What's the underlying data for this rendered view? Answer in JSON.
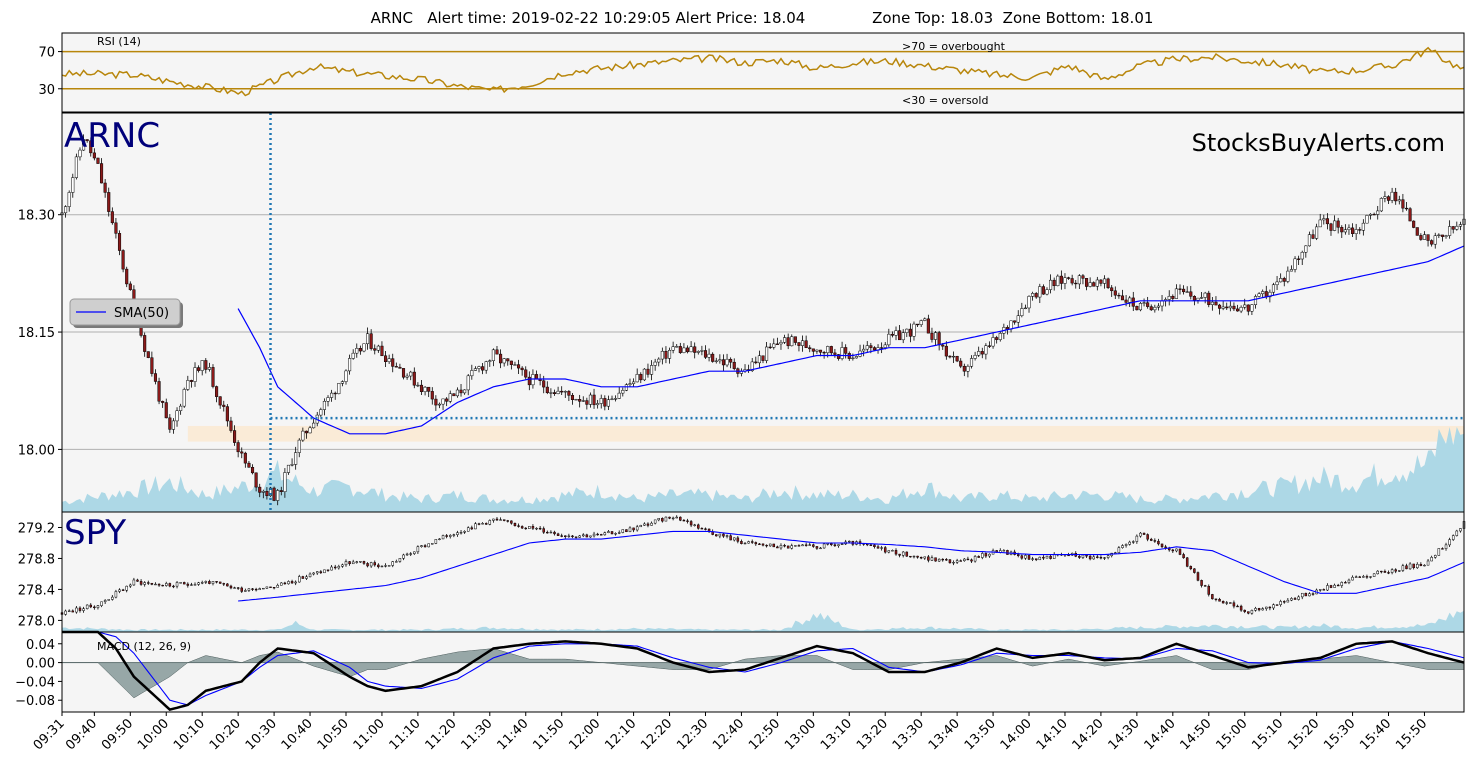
{
  "header": {
    "title": "ARNC   Alert time: 2019-02-22 10:29:05 Alert Price: 18.04              Zone Top: 18.03  Zone Bottom: 18.01"
  },
  "watermark": "StocksBuyAlerts.com",
  "colors": {
    "panel_bg": "#f5f5f5",
    "rsi_line": "#b8860b",
    "sma": "#0000ff",
    "volume": "#add8e6",
    "alert_line": "#1f77b4",
    "zone_fill": "#faebd7",
    "macd_hist": "#7f9394",
    "macd_line": "#000000",
    "signal_line": "#0000ff",
    "ticker_text": "#00007a"
  },
  "chart_data": [
    {
      "type": "line",
      "name": "rsi-panel",
      "label": "RSI (14)",
      "ylim": [
        5,
        90
      ],
      "yticks": [
        30,
        70
      ],
      "overbought": {
        "level": 70,
        "label": ">70 = overbought"
      },
      "oversold": {
        "level": 30,
        "label": "<30 = oversold"
      },
      "series": [
        {
          "name": "RSI (14)",
          "x": [
            0,
            10,
            20,
            30,
            40,
            50,
            60,
            70,
            80,
            90,
            100,
            110,
            120,
            130,
            140,
            150,
            160,
            170,
            180,
            190,
            200,
            210,
            220,
            230,
            240,
            250,
            260,
            270,
            280,
            290,
            300,
            310,
            320,
            330,
            340,
            350,
            360,
            370,
            380,
            390
          ],
          "y": [
            46,
            46,
            45,
            38,
            32,
            25,
            40,
            54,
            48,
            44,
            40,
            33,
            28,
            35,
            48,
            52,
            56,
            60,
            63,
            58,
            61,
            52,
            58,
            60,
            55,
            50,
            45,
            42,
            55,
            40,
            55,
            62,
            64,
            60,
            56,
            48,
            50,
            55,
            72,
            50
          ]
        }
      ]
    },
    {
      "type": "candlestick",
      "name": "arnc-price-panel",
      "ticker": "ARNC",
      "ylim": [
        17.92,
        18.43
      ],
      "yticks": [
        18.0,
        18.15,
        18.3
      ],
      "ytick_labels": [
        "18.00",
        "18.15",
        "18.30"
      ],
      "alert": {
        "time_index": 58,
        "price": 18.04
      },
      "zone": {
        "top": 18.03,
        "bottom": 18.01
      },
      "legend": {
        "label": "SMA(50)",
        "placement": "center-left"
      },
      "close_series": {
        "x": [
          0,
          6,
          10,
          15,
          20,
          25,
          30,
          35,
          40,
          45,
          50,
          55,
          60,
          65,
          70,
          75,
          80,
          85,
          90,
          95,
          100,
          105,
          110,
          115,
          120,
          130,
          140,
          150,
          160,
          170,
          180,
          190,
          200,
          210,
          220,
          230,
          240,
          250,
          260,
          270,
          280,
          290,
          300,
          310,
          320,
          330,
          340,
          350,
          360,
          370,
          380,
          390
        ],
        "y": [
          18.3,
          18.4,
          18.36,
          18.27,
          18.18,
          18.1,
          18.02,
          18.09,
          18.11,
          18.05,
          17.99,
          17.95,
          17.94,
          18.0,
          18.04,
          18.07,
          18.11,
          18.14,
          18.12,
          18.1,
          18.08,
          18.06,
          18.07,
          18.1,
          18.12,
          18.09,
          18.07,
          18.06,
          18.09,
          18.13,
          18.12,
          18.1,
          18.14,
          18.13,
          18.12,
          18.14,
          18.16,
          18.1,
          18.14,
          18.2,
          18.22,
          18.21,
          18.18,
          18.2,
          18.19,
          18.18,
          18.22,
          18.29,
          18.28,
          18.33,
          18.26,
          18.29
        ]
      },
      "sma_series": {
        "name": "SMA(50)",
        "x": [
          49,
          55,
          60,
          65,
          70,
          80,
          90,
          100,
          110,
          120,
          130,
          140,
          150,
          160,
          170,
          180,
          190,
          200,
          210,
          220,
          230,
          240,
          250,
          260,
          270,
          280,
          290,
          300,
          310,
          320,
          330,
          340,
          350,
          360,
          370,
          380,
          390
        ],
        "y": [
          18.18,
          18.13,
          18.08,
          18.06,
          18.04,
          18.02,
          18.02,
          18.03,
          18.06,
          18.08,
          18.09,
          18.09,
          18.08,
          18.08,
          18.09,
          18.1,
          18.1,
          18.11,
          18.12,
          18.12,
          18.13,
          18.13,
          18.14,
          18.15,
          18.16,
          18.17,
          18.18,
          18.19,
          18.19,
          18.19,
          18.19,
          18.2,
          18.21,
          18.22,
          18.23,
          18.24,
          18.26
        ]
      },
      "volume_series": {
        "x": [
          0,
          20,
          30,
          40,
          50,
          60,
          70,
          80,
          90,
          100,
          110,
          120,
          130,
          140,
          150,
          160,
          170,
          180,
          190,
          200,
          210,
          220,
          230,
          240,
          250,
          260,
          270,
          280,
          290,
          300,
          310,
          320,
          330,
          340,
          350,
          360,
          370,
          380,
          385,
          390
        ],
        "y": [
          0.12,
          0.25,
          0.35,
          0.2,
          0.3,
          0.45,
          0.25,
          0.3,
          0.2,
          0.15,
          0.2,
          0.15,
          0.15,
          0.2,
          0.25,
          0.15,
          0.2,
          0.2,
          0.15,
          0.25,
          0.2,
          0.2,
          0.15,
          0.3,
          0.15,
          0.2,
          0.15,
          0.2,
          0.2,
          0.15,
          0.15,
          0.2,
          0.25,
          0.3,
          0.4,
          0.35,
          0.5,
          0.55,
          1.0,
          0.95
        ]
      }
    },
    {
      "type": "candlestick",
      "name": "spy-price-panel",
      "ticker": "SPY",
      "ylim": [
        277.85,
        279.4
      ],
      "yticks": [
        278.0,
        278.4,
        278.8,
        279.2
      ],
      "ytick_labels": [
        "278.0",
        "278.4",
        "278.8",
        "279.2"
      ],
      "close_series": {
        "x": [
          0,
          10,
          20,
          30,
          40,
          50,
          60,
          70,
          80,
          90,
          100,
          110,
          120,
          130,
          140,
          150,
          160,
          170,
          180,
          190,
          200,
          210,
          220,
          230,
          240,
          250,
          260,
          270,
          280,
          290,
          300,
          310,
          320,
          330,
          340,
          350,
          360,
          370,
          380,
          390
        ],
        "y": [
          278.1,
          278.2,
          278.5,
          278.45,
          278.5,
          278.4,
          278.45,
          278.6,
          278.75,
          278.7,
          278.95,
          279.15,
          279.3,
          279.2,
          279.1,
          279.1,
          279.2,
          279.35,
          279.15,
          279.0,
          278.95,
          278.95,
          279.0,
          278.9,
          278.8,
          278.75,
          278.9,
          278.8,
          278.85,
          278.8,
          279.1,
          278.9,
          278.3,
          278.1,
          278.25,
          278.4,
          278.55,
          278.65,
          278.75,
          279.25
        ]
      },
      "sma_series": {
        "name": "SMA(50)",
        "x": [
          49,
          60,
          70,
          80,
          90,
          100,
          110,
          120,
          130,
          140,
          150,
          160,
          170,
          180,
          190,
          200,
          210,
          220,
          230,
          240,
          250,
          260,
          270,
          280,
          290,
          300,
          310,
          320,
          330,
          340,
          350,
          360,
          370,
          380,
          390
        ],
        "y": [
          278.25,
          278.3,
          278.35,
          278.4,
          278.45,
          278.55,
          278.7,
          278.85,
          279.0,
          279.05,
          279.05,
          279.1,
          279.15,
          279.15,
          279.1,
          279.05,
          279.0,
          279.0,
          278.98,
          278.95,
          278.9,
          278.88,
          278.85,
          278.85,
          278.85,
          278.88,
          278.95,
          278.9,
          278.7,
          278.5,
          278.35,
          278.35,
          278.45,
          278.55,
          278.75
        ]
      },
      "volume_series": {
        "x": [
          0,
          20,
          40,
          60,
          65,
          70,
          80,
          100,
          120,
          140,
          160,
          180,
          200,
          210,
          220,
          240,
          260,
          280,
          300,
          320,
          340,
          350,
          360,
          380,
          390
        ],
        "y": [
          0.2,
          0.1,
          0.1,
          0.1,
          0.4,
          0.1,
          0.1,
          0.1,
          0.2,
          0.1,
          0.15,
          0.1,
          0.1,
          0.8,
          0.1,
          0.2,
          0.1,
          0.1,
          0.2,
          0.3,
          0.2,
          0.3,
          0.2,
          0.3,
          1.0
        ]
      }
    },
    {
      "type": "line",
      "name": "macd-panel",
      "label": "MACD (12, 26, 9)",
      "ylim": [
        -0.105,
        0.065
      ],
      "yticks": [
        -0.08,
        -0.04,
        0.0,
        0.04
      ],
      "ytick_labels": [
        "−0.08",
        "−0.04",
        "0.00",
        "0.04"
      ],
      "series": [
        {
          "name": "MACD",
          "x": [
            0,
            10,
            15,
            20,
            30,
            35,
            40,
            50,
            55,
            60,
            70,
            80,
            85,
            90,
            100,
            110,
            120,
            130,
            140,
            150,
            160,
            170,
            180,
            190,
            200,
            210,
            220,
            230,
            240,
            250,
            260,
            270,
            280,
            290,
            300,
            310,
            320,
            330,
            340,
            350,
            360,
            370,
            380,
            390
          ],
          "y": [
            0.065,
            0.065,
            0.03,
            -0.03,
            -0.1,
            -0.09,
            -0.06,
            -0.04,
            0.0,
            0.03,
            0.02,
            -0.03,
            -0.05,
            -0.06,
            -0.05,
            -0.02,
            0.03,
            0.04,
            0.045,
            0.04,
            0.03,
            0.0,
            -0.02,
            -0.015,
            0.01,
            0.035,
            0.02,
            -0.02,
            -0.02,
            0.0,
            0.03,
            0.01,
            0.02,
            0.005,
            0.01,
            0.04,
            0.015,
            -0.01,
            0.0,
            0.01,
            0.04,
            0.045,
            0.02,
            0.0
          ]
        },
        {
          "name": "Signal",
          "x": [
            0,
            10,
            15,
            20,
            30,
            35,
            40,
            50,
            55,
            60,
            70,
            80,
            85,
            90,
            100,
            110,
            120,
            130,
            140,
            150,
            160,
            170,
            180,
            190,
            200,
            210,
            220,
            230,
            240,
            250,
            260,
            270,
            280,
            290,
            300,
            310,
            320,
            330,
            340,
            350,
            360,
            370,
            380,
            390
          ],
          "y": [
            0.065,
            0.065,
            0.055,
            0.02,
            -0.08,
            -0.09,
            -0.07,
            -0.04,
            -0.01,
            0.015,
            0.025,
            -0.01,
            -0.04,
            -0.05,
            -0.055,
            -0.035,
            0.01,
            0.035,
            0.04,
            0.04,
            0.035,
            0.01,
            -0.01,
            -0.02,
            0.0,
            0.025,
            0.03,
            -0.01,
            -0.02,
            -0.005,
            0.02,
            0.015,
            0.015,
            0.01,
            0.008,
            0.03,
            0.025,
            0.0,
            -0.002,
            0.005,
            0.03,
            0.045,
            0.03,
            0.01
          ]
        }
      ]
    }
  ],
  "x_axis": {
    "tick_index": [
      0,
      9,
      19,
      29,
      39,
      49,
      59,
      69,
      79,
      89,
      99,
      109,
      119,
      129,
      139,
      149,
      159,
      169,
      179,
      189,
      199,
      209,
      219,
      229,
      239,
      249,
      259,
      269,
      279,
      289,
      299,
      309,
      319,
      329,
      339,
      349,
      359,
      369,
      379
    ],
    "tick_labels": [
      "09:31",
      "09:40",
      "09:50",
      "10:00",
      "10:10",
      "10:20",
      "10:30",
      "10:40",
      "10:50",
      "11:00",
      "11:10",
      "11:20",
      "11:30",
      "11:40",
      "11:50",
      "12:00",
      "12:10",
      "12:20",
      "12:30",
      "12:40",
      "12:50",
      "13:00",
      "13:10",
      "13:20",
      "13:30",
      "13:40",
      "13:50",
      "14:00",
      "14:10",
      "14:20",
      "14:30",
      "14:40",
      "14:50",
      "15:00",
      "15:10",
      "15:20",
      "15:30",
      "15:40",
      "15:50"
    ]
  }
}
